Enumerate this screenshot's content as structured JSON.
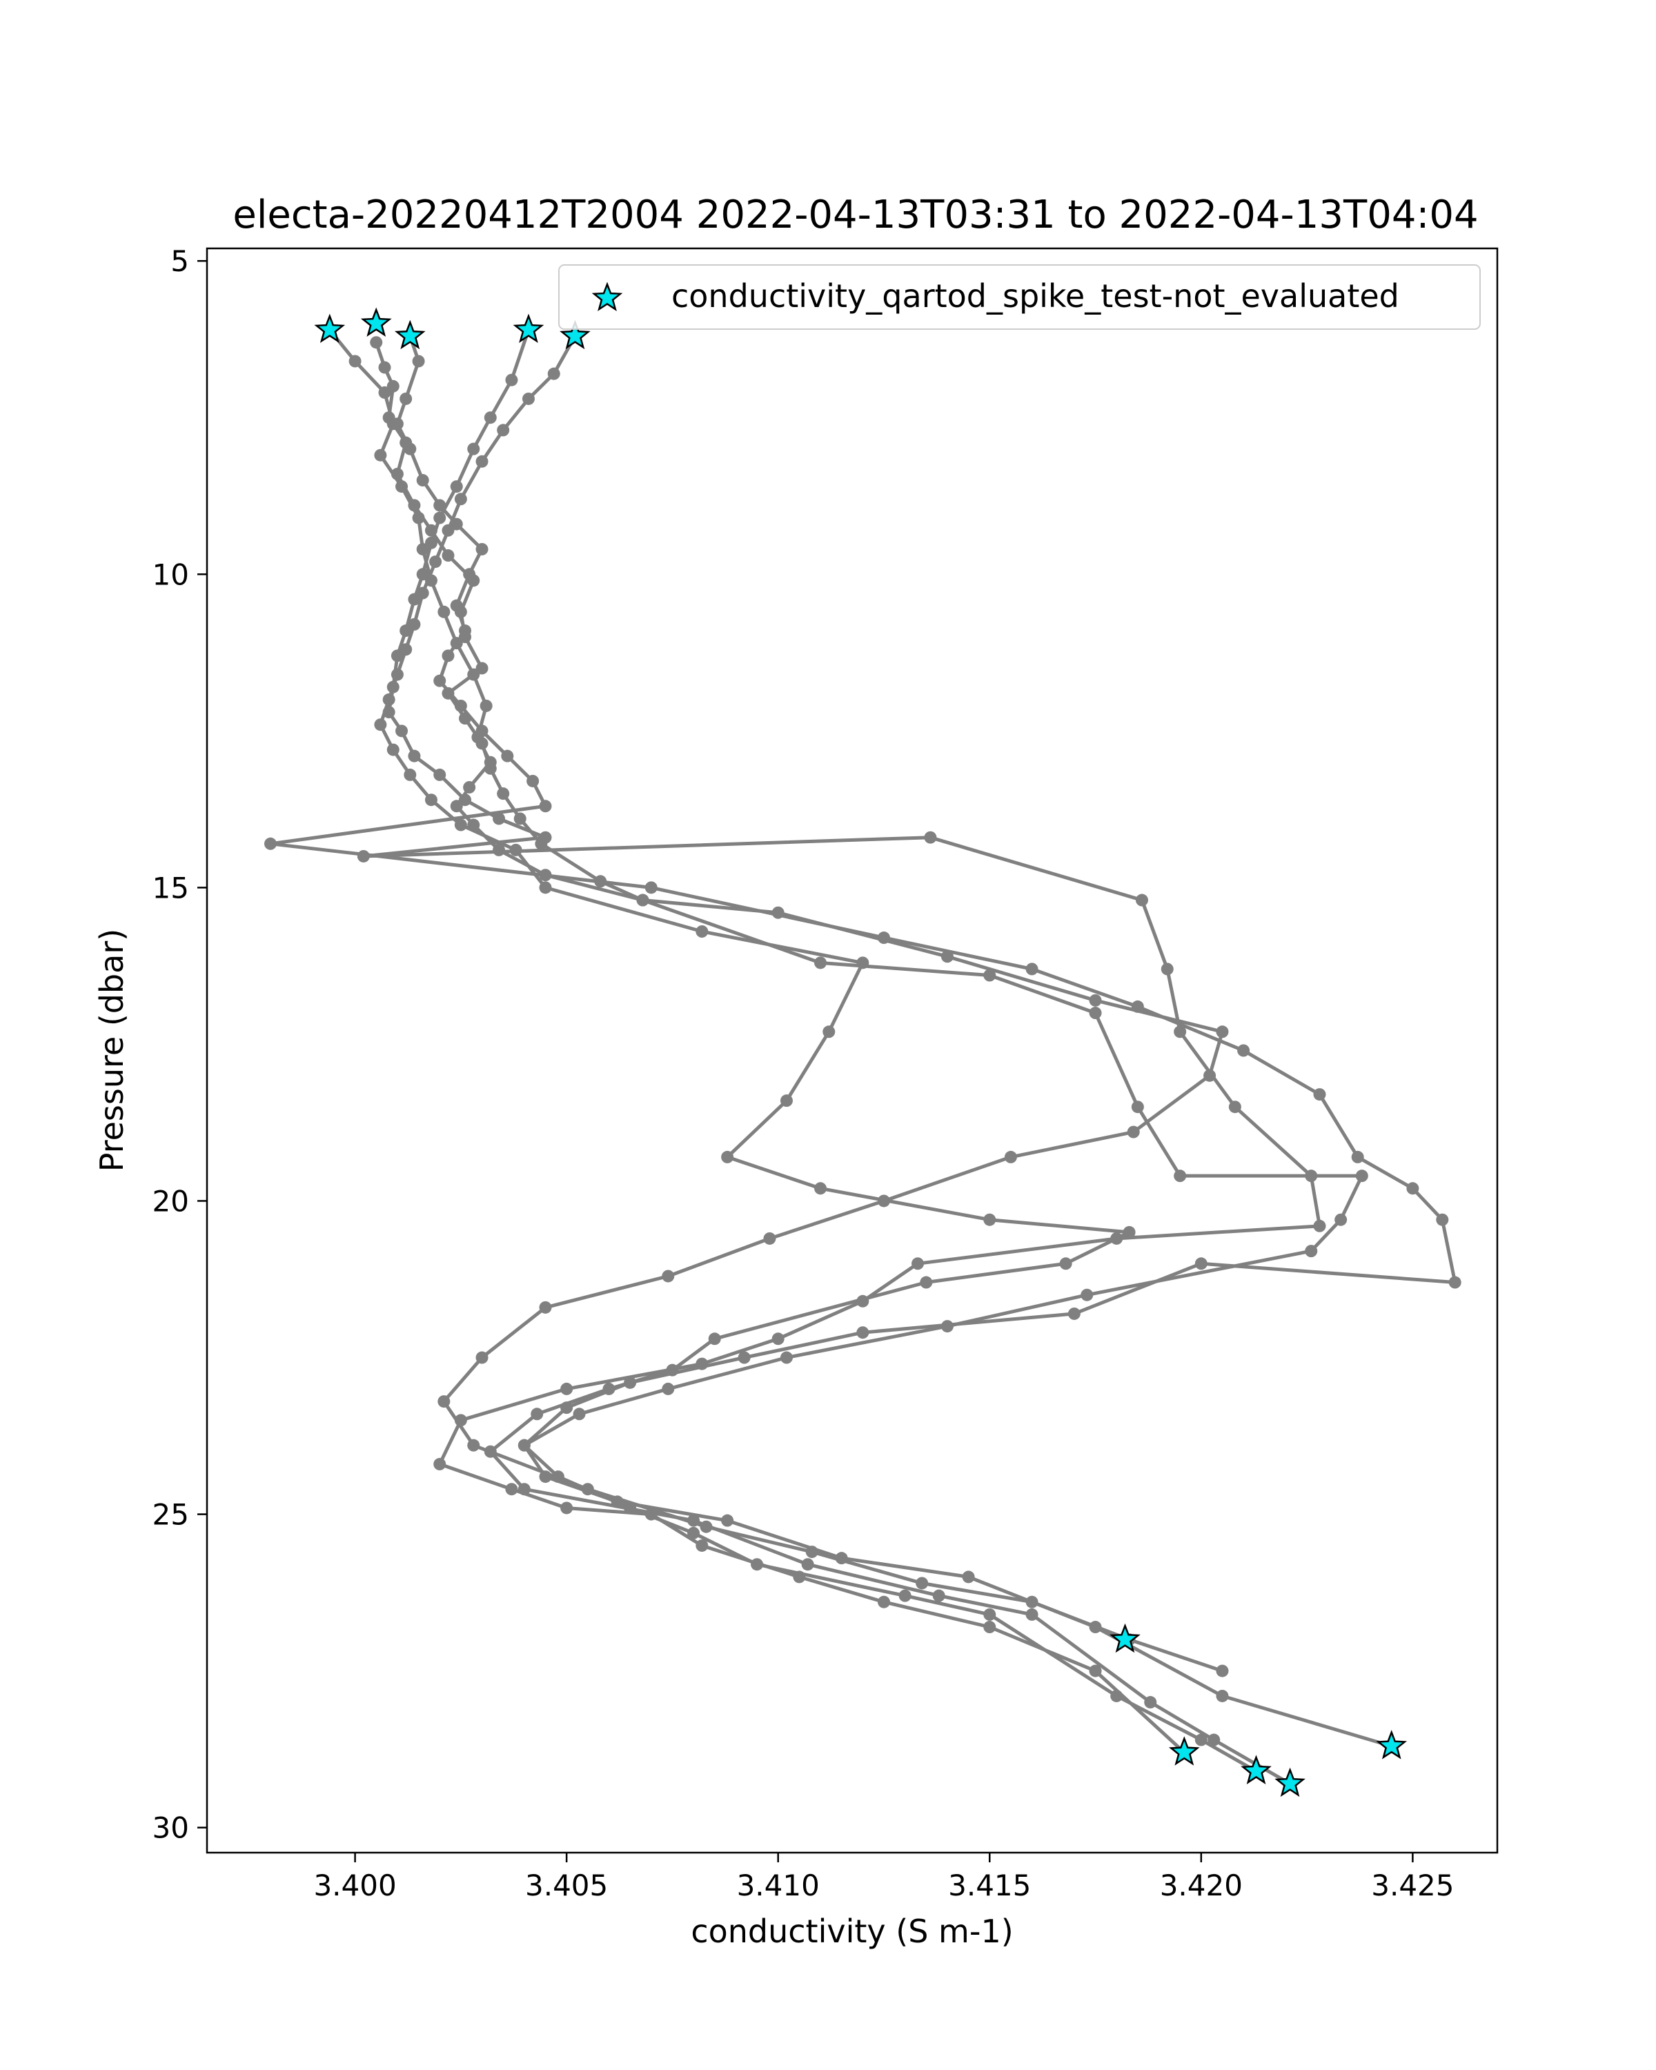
{
  "chart_data": {
    "type": "line",
    "title": "electa-20220412T2004 2022-04-13T03:31 to 2022-04-13T04:04",
    "xlabel": "conductivity (S m-1)",
    "ylabel": "Pressure (dbar)",
    "xlim": [
      3.3965,
      3.427
    ],
    "ylim": [
      30.4,
      4.8
    ],
    "y_inverted": true,
    "xticks": [
      3.4,
      3.405,
      3.41,
      3.415,
      3.42,
      3.425
    ],
    "xtick_labels": [
      "3.400",
      "3.405",
      "3.410",
      "3.415",
      "3.420",
      "3.425"
    ],
    "yticks": [
      5,
      10,
      15,
      20,
      25,
      30
    ],
    "ytick_labels": [
      "5",
      "10",
      "15",
      "20",
      "25",
      "30"
    ],
    "grid": false,
    "legend_position": "top-right",
    "colors": {
      "line": "#808080",
      "flag_fill": "#00e5ee",
      "flag_edge": "#000000"
    },
    "series": [
      {
        "x": [
          3.4005,
          3.4007,
          3.4009,
          3.4008,
          3.4012,
          3.401,
          3.4014,
          3.4018,
          3.4022,
          3.4028,
          3.4025,
          3.4026,
          3.403,
          3.4022,
          3.4026,
          3.403,
          3.4032,
          3.4035,
          3.4039,
          3.4044,
          3.4058,
          3.4068,
          3.411,
          3.415,
          3.4175,
          3.4185,
          3.4195,
          3.4238,
          3.4233,
          3.4226,
          3.4173,
          3.414,
          3.4102,
          3.4074,
          3.4053,
          3.404,
          3.4048,
          3.4065,
          3.408,
          3.4095,
          3.413,
          3.415,
          3.418,
          3.42,
          3.4213
        ],
        "y": [
          6.3,
          6.7,
          7.0,
          7.5,
          7.9,
          8.4,
          8.9,
          9.3,
          9.7,
          10.1,
          10.6,
          11.0,
          11.5,
          11.9,
          12.3,
          12.7,
          13.1,
          13.5,
          13.9,
          14.3,
          14.9,
          15.2,
          16.2,
          16.4,
          17.0,
          18.5,
          19.6,
          19.6,
          20.3,
          20.8,
          21.5,
          22.0,
          22.5,
          23.0,
          23.4,
          23.9,
          24.4,
          24.9,
          25.3,
          25.8,
          26.3,
          26.6,
          27.9,
          28.6,
          29.1
        ]
      },
      {
        "x": [
          3.4013,
          3.4015,
          3.4012,
          3.401,
          3.4013,
          3.4016,
          3.402,
          3.4024,
          3.403,
          3.4027,
          3.4024,
          3.4026,
          3.4022,
          3.402,
          3.4025,
          3.403,
          3.4036,
          3.4042,
          3.4045,
          3.398,
          3.407,
          3.4125,
          3.416,
          3.4185,
          3.421,
          3.4228,
          3.4237,
          3.425,
          3.4257,
          3.426,
          3.42,
          3.417,
          3.412,
          3.4092,
          3.4065,
          3.405,
          3.404,
          3.4045,
          3.4062,
          3.4088,
          3.4115,
          3.4145,
          3.4175,
          3.4205,
          3.4245
        ],
        "y": [
          6.2,
          6.6,
          7.2,
          7.6,
          8.0,
          8.5,
          8.9,
          9.2,
          9.6,
          10.0,
          10.5,
          10.9,
          11.3,
          11.7,
          12.1,
          12.5,
          12.9,
          13.3,
          13.7,
          14.3,
          15.0,
          15.8,
          16.3,
          16.9,
          17.6,
          18.3,
          19.3,
          19.8,
          20.3,
          21.3,
          21.0,
          21.8,
          22.1,
          22.5,
          22.9,
          23.3,
          23.9,
          24.4,
          24.8,
          25.1,
          25.7,
          26.0,
          26.8,
          27.9,
          28.7
        ]
      },
      {
        "x": [
          3.4041,
          3.4037,
          3.4032,
          3.4028,
          3.4024,
          3.402,
          3.4018,
          3.4016,
          3.4014,
          3.4012,
          3.401,
          3.4009,
          3.4008,
          3.4011,
          3.4014,
          3.402,
          3.4026,
          3.4034,
          3.4045,
          3.4002,
          3.4136,
          3.4186,
          3.4192,
          3.4195,
          3.4208,
          3.4226,
          3.4228,
          3.418,
          3.4133,
          3.412,
          3.41,
          3.4082,
          3.405,
          3.4025,
          3.402,
          3.4037,
          3.405,
          3.407,
          3.4082,
          3.4105,
          3.4125,
          3.415,
          3.4175,
          3.4196
        ],
        "y": [
          6.1,
          6.9,
          7.5,
          8.0,
          8.6,
          9.1,
          9.5,
          10.0,
          10.4,
          10.9,
          11.3,
          11.8,
          12.2,
          12.5,
          12.9,
          13.2,
          13.6,
          13.9,
          14.2,
          14.5,
          14.2,
          15.2,
          16.3,
          17.3,
          18.5,
          19.6,
          20.4,
          20.6,
          21.0,
          21.6,
          22.2,
          22.6,
          23.0,
          23.5,
          24.2,
          24.6,
          24.9,
          25.0,
          25.5,
          26.0,
          26.4,
          26.8,
          27.5,
          28.8
        ]
      },
      {
        "x": [
          3.4052,
          3.4047,
          3.4041,
          3.4035,
          3.403,
          3.4025,
          3.4022,
          3.4019,
          3.4016,
          3.4014,
          3.4012,
          3.401,
          3.4008,
          3.4006,
          3.4009,
          3.4013,
          3.4018,
          3.4025,
          3.4038,
          3.4045,
          3.4082,
          3.412,
          3.4112,
          3.4102,
          3.4088,
          3.411,
          3.415,
          3.4183,
          3.4168,
          3.4135,
          3.4085,
          3.4075,
          3.406,
          3.4043,
          3.4032,
          3.404,
          3.408,
          3.4107,
          3.4138,
          3.416,
          3.4188,
          3.4203,
          3.4221
        ],
        "y": [
          6.2,
          6.8,
          7.2,
          7.7,
          8.2,
          8.8,
          9.3,
          9.8,
          10.3,
          10.8,
          11.2,
          11.6,
          12.0,
          12.4,
          12.8,
          13.2,
          13.6,
          14.0,
          14.4,
          15.0,
          15.7,
          16.2,
          17.3,
          18.4,
          19.3,
          19.8,
          20.3,
          20.5,
          21.0,
          21.3,
          22.2,
          22.7,
          23.0,
          23.4,
          24.0,
          24.6,
          25.1,
          25.8,
          26.3,
          26.6,
          28.0,
          28.6,
          29.3
        ]
      },
      {
        "x": [
          3.3994,
          3.4,
          3.4007,
          3.4009,
          3.4006,
          3.4011,
          3.4015,
          3.4016,
          3.4018,
          3.4021,
          3.4024,
          3.4028,
          3.4031,
          3.4029,
          3.4032,
          3.4027,
          3.4024,
          3.4028,
          3.4034,
          3.4045,
          3.4068,
          3.41,
          3.414,
          3.4175,
          3.4205,
          3.4202,
          3.4184,
          3.4155,
          3.4125,
          3.4098,
          3.4074,
          3.4045,
          3.403,
          3.4021,
          3.4028,
          3.4055,
          3.4083,
          3.4108,
          3.4134,
          3.416,
          3.4183,
          3.4205
        ],
        "y": [
          6.1,
          6.6,
          7.1,
          7.6,
          8.1,
          8.6,
          9.1,
          9.6,
          10.1,
          10.6,
          11.1,
          11.6,
          12.1,
          12.6,
          13.0,
          13.4,
          13.7,
          14.0,
          14.4,
          14.8,
          15.2,
          15.4,
          16.1,
          16.8,
          17.3,
          18.0,
          18.9,
          19.3,
          20.0,
          20.6,
          21.2,
          21.7,
          22.5,
          23.2,
          23.9,
          24.6,
          25.2,
          25.6,
          26.1,
          26.4,
          27.0,
          27.5
        ]
      }
    ],
    "flagged_series_name": "conductivity_qartod_spike_test-not_evaluated",
    "flagged_points": {
      "x": [
        3.3994,
        3.4005,
        3.4013,
        3.4041,
        3.4052,
        3.4182,
        3.4196,
        3.4213,
        3.4221,
        3.4245
      ],
      "y": [
        6.1,
        6.0,
        6.2,
        6.1,
        6.2,
        27.0,
        28.8,
        29.1,
        29.3,
        28.7
      ]
    }
  }
}
